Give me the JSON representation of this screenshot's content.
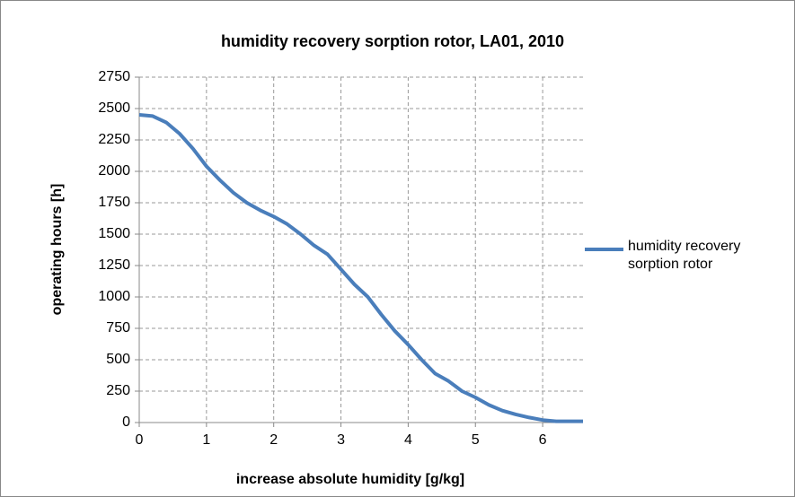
{
  "chart_data": {
    "type": "line",
    "title": "humidity recovery sorption rotor, LA01, 2010",
    "x_label": "increase  absolute humidity [g/kg]",
    "y_label": "operating hours  [h]",
    "x": [
      0,
      0.2,
      0.4,
      0.6,
      0.8,
      1.0,
      1.2,
      1.4,
      1.6,
      1.8,
      2.0,
      2.2,
      2.4,
      2.6,
      2.8,
      3.0,
      3.2,
      3.4,
      3.6,
      3.8,
      4.0,
      4.2,
      4.4,
      4.6,
      4.8,
      5.0,
      5.2,
      5.4,
      5.6,
      5.8,
      6.0,
      6.2,
      6.4,
      6.6
    ],
    "series": [
      {
        "name": "humidity recovery sorption rotor",
        "color": "#4a7ebb",
        "values": [
          2450,
          2440,
          2390,
          2300,
          2180,
          2040,
          1930,
          1830,
          1750,
          1690,
          1640,
          1580,
          1500,
          1410,
          1340,
          1220,
          1100,
          1000,
          860,
          730,
          620,
          500,
          390,
          330,
          250,
          200,
          140,
          95,
          65,
          40,
          20,
          10,
          10,
          10
        ]
      }
    ],
    "xlim": [
      0,
      6.6
    ],
    "xticks": [
      0,
      1,
      2,
      3,
      4,
      5,
      6
    ],
    "ylim": [
      0,
      2750
    ],
    "yticks": [
      0,
      250,
      500,
      750,
      1000,
      1250,
      1500,
      1750,
      2000,
      2250,
      2500,
      2750
    ],
    "grid": true,
    "legend": "right"
  }
}
